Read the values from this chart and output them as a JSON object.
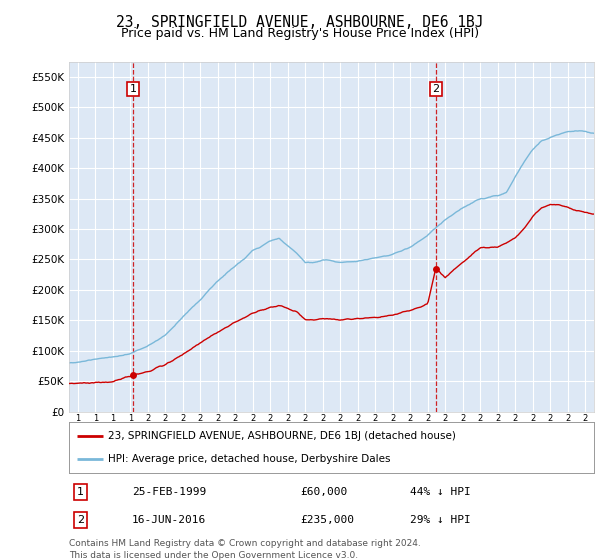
{
  "title": "23, SPRINGFIELD AVENUE, ASHBOURNE, DE6 1BJ",
  "subtitle": "Price paid vs. HM Land Registry's House Price Index (HPI)",
  "ylim": [
    0,
    575000
  ],
  "yticks": [
    0,
    50000,
    100000,
    150000,
    200000,
    250000,
    300000,
    350000,
    400000,
    450000,
    500000,
    550000
  ],
  "background_color": "#dde8f5",
  "hpi_color": "#7ab8d9",
  "price_color": "#cc0000",
  "dashed_color": "#cc0000",
  "sale1_date_num": 1999.15,
  "sale1_price": 60000,
  "sale1_label": "1",
  "sale2_date_num": 2016.46,
  "sale2_price": 235000,
  "sale2_label": "2",
  "legend_line1": "23, SPRINGFIELD AVENUE, ASHBOURNE, DE6 1BJ (detached house)",
  "legend_line2": "HPI: Average price, detached house, Derbyshire Dales",
  "table_row1_num": "1",
  "table_row1_date": "25-FEB-1999",
  "table_row1_price": "£60,000",
  "table_row1_hpi": "44% ↓ HPI",
  "table_row2_num": "2",
  "table_row2_date": "16-JUN-2016",
  "table_row2_price": "£235,000",
  "table_row2_hpi": "29% ↓ HPI",
  "footer": "Contains HM Land Registry data © Crown copyright and database right 2024.\nThis data is licensed under the Open Government Licence v3.0.",
  "title_fontsize": 10.5,
  "subtitle_fontsize": 9,
  "tick_fontsize": 7.5,
  "xstart": 1995.5,
  "xend": 2025.5,
  "xtick_start": 1996,
  "xtick_end": 2025
}
